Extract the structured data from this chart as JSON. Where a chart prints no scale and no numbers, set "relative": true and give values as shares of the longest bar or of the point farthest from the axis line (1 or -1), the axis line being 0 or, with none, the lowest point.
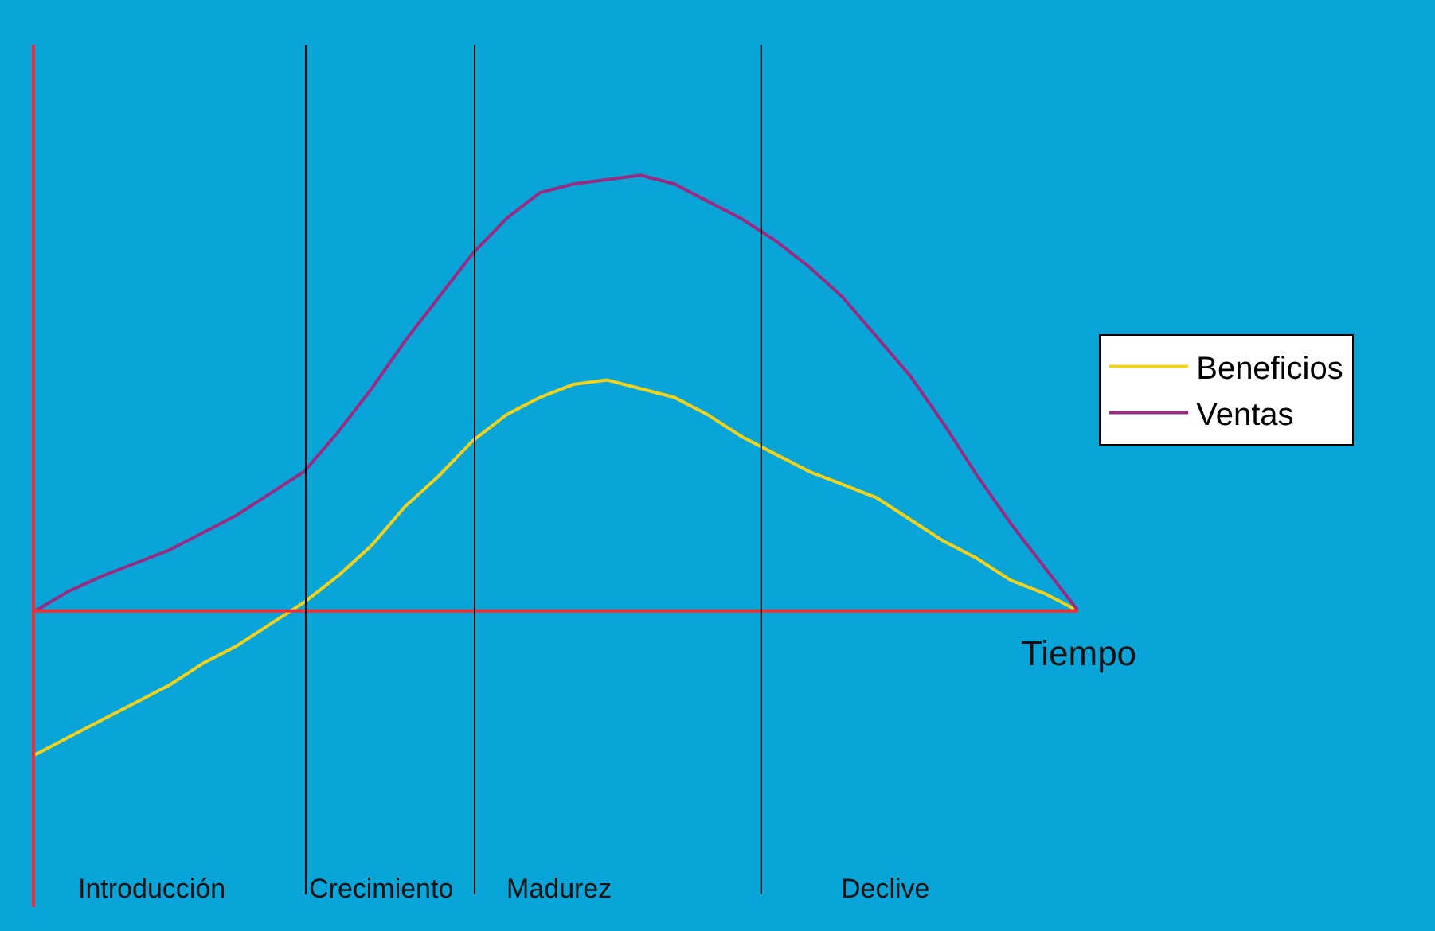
{
  "chart_data": {
    "type": "line",
    "relative": true,
    "xlabel": "Tiempo",
    "legend": "right",
    "marker": "none",
    "line_style": "solid",
    "categories": [
      null,
      null,
      null,
      null,
      null,
      null,
      null,
      null,
      null,
      null,
      null,
      null,
      null,
      null,
      null,
      null,
      null,
      null,
      null,
      null,
      null,
      null,
      null,
      null,
      null,
      null,
      null,
      null,
      null,
      null,
      null,
      null
    ],
    "series": [
      {
        "name": "Beneficios",
        "color": "#f2d21b",
        "values": [
          -0.33,
          -0.29,
          -0.25,
          -0.21,
          -0.17,
          -0.12,
          -0.08,
          -0.03,
          0.02,
          0.08,
          0.15,
          0.24,
          0.31,
          0.39,
          0.45,
          0.49,
          0.52,
          0.53,
          0.51,
          0.49,
          0.45,
          0.4,
          0.36,
          0.32,
          0.29,
          0.26,
          0.21,
          0.16,
          0.12,
          0.07,
          0.04,
          0
        ]
      },
      {
        "name": "Ventas",
        "color": "#9b2a82",
        "values": [
          0,
          0.045,
          0.08,
          0.11,
          0.14,
          0.18,
          0.22,
          0.27,
          0.32,
          0.41,
          0.51,
          0.62,
          0.72,
          0.82,
          0.9,
          0.96,
          0.98,
          0.99,
          1.0,
          0.98,
          0.94,
          0.9,
          0.85,
          0.79,
          0.72,
          0.63,
          0.54,
          0.43,
          0.31,
          0.2,
          0.1,
          0
        ]
      }
    ],
    "ref_lines": [
      {
        "axis": "y",
        "value": 0,
        "color": "#e8303a"
      }
    ],
    "annotations": [
      "Introducción",
      "Crecimiento",
      "Madurez",
      "Declive"
    ]
  }
}
